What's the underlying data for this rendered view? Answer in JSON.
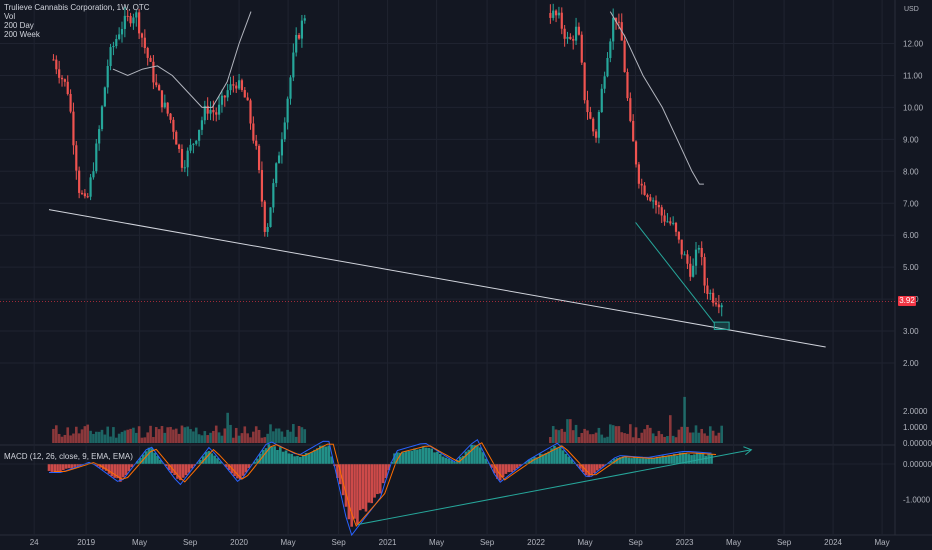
{
  "header": {
    "symbol": "Trulieve Cannabis Corporation, 1W, OTC",
    "indicators": [
      "Vol",
      "200 Day",
      "200 Week"
    ]
  },
  "currency": "USD",
  "last_price": "3.92",
  "macd_label": "MACD (12, 26, close, 9, EMA, EMA)",
  "colors": {
    "up": "#26a69a",
    "down": "#ef5350",
    "background": "#131722",
    "grid": "#1f2330",
    "trendline": "#d1d4dc",
    "annotation": "#26a69a"
  },
  "chart_data": [
    {
      "type": "candlestick",
      "title": "Trulieve Cannabis Corporation, 1W, OTC",
      "price_axis": [
        "12.00",
        "11.00",
        "10.00",
        "9.00",
        "8.00",
        "7.00",
        "6.00",
        "5.00",
        "4.00",
        "3.00",
        "2.00"
      ],
      "ylim": [
        2.0,
        13.0
      ],
      "time_axis": [
        "24",
        "2019",
        "May",
        "Sep",
        "2020",
        "May",
        "Sep",
        "2021",
        "May",
        "Sep",
        "2022",
        "May",
        "Sep",
        "2023",
        "May",
        "Sep",
        "2024",
        "May"
      ],
      "price_path": [
        [
          2018.75,
          11.5
        ],
        [
          2018.85,
          10.5
        ],
        [
          2018.92,
          7.5
        ],
        [
          2018.97,
          6.9
        ],
        [
          2019.05,
          9.0
        ],
        [
          2019.12,
          11.5
        ],
        [
          2019.2,
          12.5
        ],
        [
          2019.3,
          13.0
        ],
        [
          2019.37,
          11.8
        ],
        [
          2019.45,
          10.5
        ],
        [
          2019.55,
          9.5
        ],
        [
          2019.62,
          8.2
        ],
        [
          2019.7,
          9.0
        ],
        [
          2019.78,
          10.0
        ],
        [
          2019.85,
          9.8
        ],
        [
          2019.92,
          10.5
        ],
        [
          2019.98,
          10.8
        ],
        [
          2020.05,
          10.2
        ],
        [
          2020.12,
          8.5
        ],
        [
          2020.18,
          6.0
        ],
        [
          2020.23,
          7.5
        ],
        [
          2020.3,
          9.5
        ],
        [
          2020.38,
          12.0
        ],
        [
          2020.45,
          13.0
        ],
        [
          2022.08,
          13.0
        ],
        [
          2022.15,
          12.8
        ],
        [
          2022.22,
          12.0
        ],
        [
          2022.28,
          12.5
        ],
        [
          2022.33,
          10.2
        ],
        [
          2022.4,
          9.0
        ],
        [
          2022.47,
          11.5
        ],
        [
          2022.53,
          13.0
        ],
        [
          2022.58,
          12.0
        ],
        [
          2022.63,
          9.5
        ],
        [
          2022.7,
          7.6
        ],
        [
          2022.78,
          7.2
        ],
        [
          2022.85,
          6.6
        ],
        [
          2022.92,
          6.3
        ],
        [
          2022.98,
          5.5
        ],
        [
          2023.05,
          4.8
        ],
        [
          2023.1,
          5.8
        ],
        [
          2023.13,
          4.5
        ],
        [
          2023.18,
          4.1
        ],
        [
          2023.25,
          3.92
        ]
      ],
      "moving_average_200_day": [
        [
          2019.15,
          11.2
        ],
        [
          2019.25,
          11.0
        ],
        [
          2019.35,
          11.2
        ],
        [
          2019.45,
          11.3
        ],
        [
          2019.55,
          11.0
        ],
        [
          2019.65,
          10.5
        ],
        [
          2019.75,
          10.0
        ],
        [
          2019.82,
          10.0
        ],
        [
          2019.92,
          10.8
        ],
        [
          2020.0,
          12.0
        ],
        [
          2020.08,
          13.0
        ]
      ],
      "moving_average_200_week": [
        [
          2022.5,
          13.0
        ],
        [
          2022.6,
          12.2
        ],
        [
          2022.72,
          11.0
        ],
        [
          2022.85,
          10.0
        ],
        [
          2022.95,
          9.0
        ],
        [
          2023.05,
          8.0
        ],
        [
          2023.1,
          7.6
        ],
        [
          2023.13,
          7.6
        ]
      ],
      "trendline": [
        [
          2018.72,
          6.8
        ],
        [
          2023.95,
          2.5
        ]
      ],
      "channel_line": [
        [
          2022.67,
          6.4
        ],
        [
          2023.2,
          3.25
        ]
      ],
      "target_box": {
        "x": [
          2023.2,
          2023.3
        ],
        "y": [
          3.05,
          3.28
        ]
      }
    },
    {
      "type": "bar",
      "title": "Vol",
      "value_axis": [
        "2.0000",
        "1.0000",
        "0.000000"
      ],
      "ylim": [
        0,
        3.0
      ],
      "spikes": [
        [
          2019.92,
          1.9
        ],
        [
          2020.97,
          1.8
        ],
        [
          2022.22,
          1.5
        ],
        [
          2022.9,
          1.75
        ],
        [
          2023.0,
          2.9
        ]
      ]
    },
    {
      "type": "histogram",
      "title": "MACD (12, 26, close, 9, EMA, EMA)",
      "value_axis": [
        "0.000000",
        "-1.0000"
      ],
      "ylim": [
        -1.9,
        0.7
      ],
      "segments": [
        [
          2018.8,
          -0.2
        ],
        [
          2019.0,
          0.05
        ],
        [
          2019.2,
          -0.45
        ],
        [
          2019.4,
          0.45
        ],
        [
          2019.6,
          -0.5
        ],
        [
          2019.8,
          0.4
        ],
        [
          2020.0,
          -0.45
        ],
        [
          2020.2,
          0.55
        ],
        [
          2020.4,
          0.2
        ],
        [
          2020.6,
          0.6
        ],
        [
          2020.75,
          -1.7
        ],
        [
          2020.95,
          -0.8
        ],
        [
          2021.05,
          0.3
        ],
        [
          2021.25,
          0.5
        ],
        [
          2021.45,
          0.05
        ],
        [
          2021.6,
          0.6
        ],
        [
          2021.75,
          -0.45
        ],
        [
          2021.95,
          0.1
        ],
        [
          2022.15,
          0.5
        ],
        [
          2022.35,
          -0.35
        ],
        [
          2022.55,
          0.2
        ],
        [
          2022.75,
          0.15
        ],
        [
          2023.0,
          0.3
        ],
        [
          2023.2,
          0.25
        ]
      ],
      "divergence_line": [
        [
          2020.8,
          -1.7
        ],
        [
          2023.45,
          0.4
        ]
      ]
    }
  ]
}
